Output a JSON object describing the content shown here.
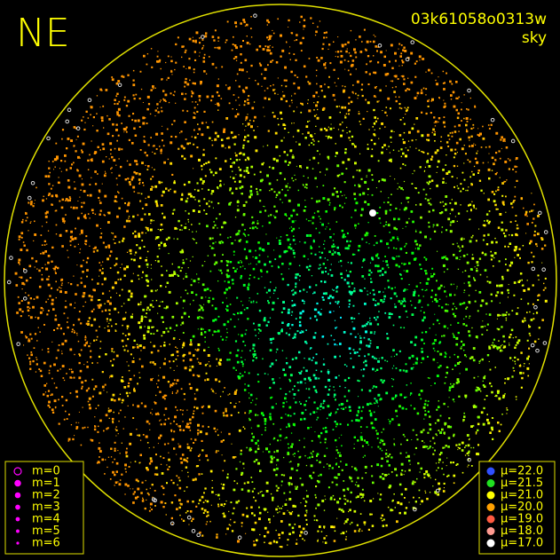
{
  "header": {
    "direction": "NE",
    "frame_id": "03k61058o0313w",
    "mode": "sky"
  },
  "magnitude_legend": {
    "entries": [
      "m=0",
      "m=1",
      "m=2",
      "m=3",
      "m=4",
      "m=5",
      "m=6"
    ],
    "color": "#ff00ff"
  },
  "brightness_legend": {
    "entries": [
      {
        "label": "μ=22.0",
        "color": "#3050ff"
      },
      {
        "label": "μ=21.5",
        "color": "#20e020"
      },
      {
        "label": "μ=21.0",
        "color": "#ffff00"
      },
      {
        "label": "μ=20.0",
        "color": "#ffa000"
      },
      {
        "label": "μ=19.0",
        "color": "#ff5a40"
      },
      {
        "label": "μ=18.0",
        "color": "#ff9a90"
      },
      {
        "label": "μ=17.0",
        "color": "#ffffff"
      }
    ]
  }
}
